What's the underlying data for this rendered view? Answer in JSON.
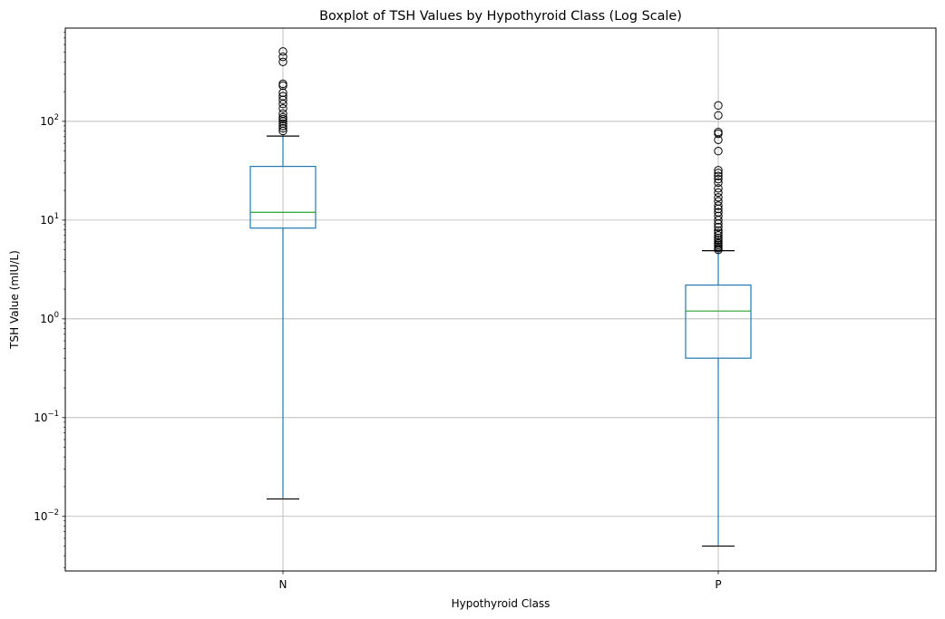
{
  "chart_data": {
    "type": "boxplot",
    "title": "Boxplot of TSH Values by Hypothyroid Class (Log Scale)",
    "xlabel": "Hypothyroid Class",
    "ylabel": "TSH Value (mIU/L)",
    "yscale": "log",
    "ylim": [
      0.0028,
      880
    ],
    "grid": true,
    "categories": [
      "N",
      "P"
    ],
    "yticks": [
      {
        "value": 0.01,
        "base": "10",
        "exp": "−2"
      },
      {
        "value": 0.1,
        "base": "10",
        "exp": "−1"
      },
      {
        "value": 1,
        "base": "10",
        "exp": "0"
      },
      {
        "value": 10,
        "base": "10",
        "exp": "1"
      },
      {
        "value": 100,
        "base": "10",
        "exp": "2"
      }
    ],
    "boxes": [
      {
        "category": "N",
        "whisker_low": 0.015,
        "q1": 8.3,
        "median": 12,
        "q3": 35,
        "whisker_high": 71,
        "outliers": [
          80,
          85,
          90,
          95,
          100,
          105,
          110,
          120,
          135,
          150,
          165,
          180,
          195,
          230,
          240,
          400,
          450,
          510
        ]
      },
      {
        "category": "P",
        "whisker_low": 0.005,
        "q1": 0.4,
        "median": 1.2,
        "q3": 2.2,
        "whisker_high": 4.9,
        "outliers": [
          5.0,
          5.2,
          5.4,
          5.6,
          5.8,
          6.0,
          6.3,
          6.6,
          7.0,
          7.4,
          7.8,
          8.5,
          9.2,
          10,
          11,
          12,
          13,
          14,
          15.5,
          17,
          19,
          21,
          24,
          26,
          28,
          30,
          32,
          50,
          65,
          75,
          78,
          115,
          145
        ]
      }
    ],
    "colors": {
      "box": "#1f77b4",
      "median": "#2ca02c",
      "whisker_cap": "#000000",
      "outlier": "#000000",
      "grid": "#b0b0b0"
    }
  }
}
